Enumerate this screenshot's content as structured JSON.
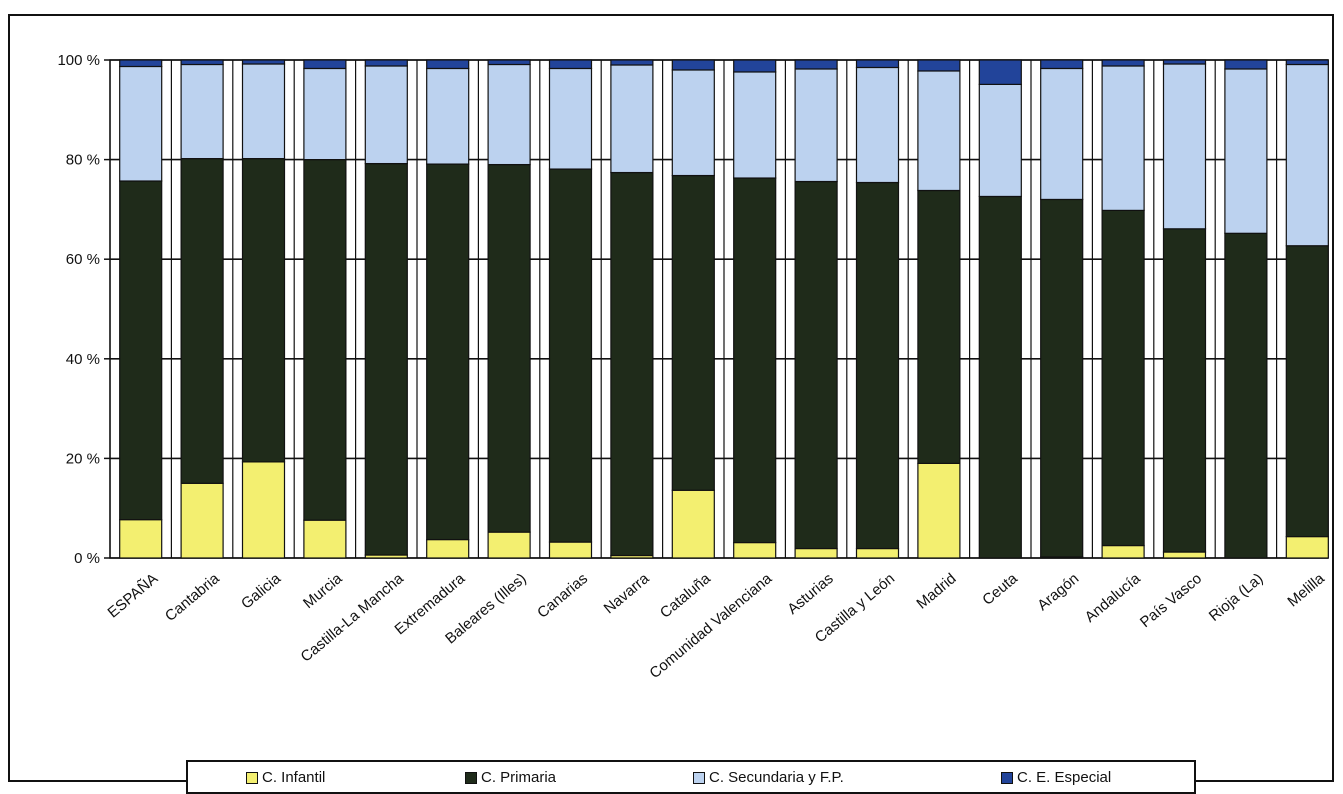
{
  "chart_data": {
    "type": "bar",
    "stacked": true,
    "percent": true,
    "categories": [
      "ESPAÑA",
      "Cantabria",
      "Galicia",
      "Murcia",
      "Castilla-La Mancha",
      "Extremadura",
      "Baleares (Illes)",
      "Canarias",
      "Navarra",
      "Cataluña",
      "Comunidad Valenciana",
      "Asturias",
      "Castilla y León",
      "Madrid",
      "Ceuta",
      "Aragón",
      "Andalucía",
      "País Vasco",
      "Rioja (La)",
      "Melilla"
    ],
    "series": [
      {
        "name": "C. Infantil",
        "color": "#f3ef70",
        "values": [
          7.7,
          15,
          19.3,
          7.6,
          0.6,
          3.7,
          5.2,
          3.2,
          0.5,
          13.6,
          3.1,
          1.9,
          1.9,
          19,
          0,
          0.2,
          2.5,
          1.2,
          0,
          4.3
        ]
      },
      {
        "name": "C. Primaria",
        "color": "#1f2b1a",
        "values": [
          68,
          65.2,
          60.9,
          72.4,
          78.6,
          75.4,
          73.8,
          74.9,
          76.9,
          63.2,
          73.2,
          73.7,
          73.5,
          54.8,
          72.6,
          71.8,
          67.3,
          64.9,
          65.2,
          58.4
        ]
      },
      {
        "name": "C. Secundaria y F.P.",
        "color": "#bcd2ef",
        "values": [
          23,
          18.9,
          19,
          18.3,
          19.6,
          19.2,
          20.1,
          20.2,
          21.6,
          21.2,
          21.3,
          22.6,
          23.1,
          24,
          22.5,
          26.3,
          29,
          33.1,
          33,
          36.4
        ]
      },
      {
        "name": "C. E. Especial",
        "color": "#22449a",
        "values": [
          1.3,
          0.9,
          0.8,
          1.7,
          1.2,
          1.7,
          0.9,
          1.7,
          1,
          2,
          2.4,
          1.8,
          1.5,
          2.2,
          4.9,
          1.7,
          1.2,
          0.8,
          1.8,
          0.9
        ]
      }
    ],
    "y_ticks": [
      "0 %",
      "20 %",
      "40 %",
      "60 %",
      "80 %",
      "100 %"
    ],
    "ylim": [
      0,
      100
    ],
    "grid": true,
    "legend_position": "bottom"
  },
  "legend": {
    "items": [
      "C. Infantil",
      "C. Primaria",
      "C. Secundaria y F.P.",
      "C. E. Especial"
    ]
  }
}
